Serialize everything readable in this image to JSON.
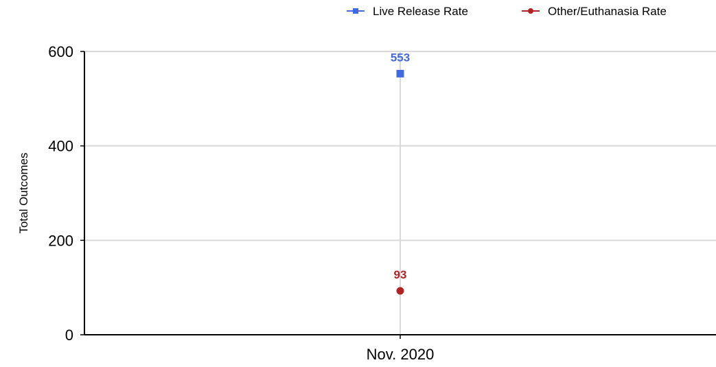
{
  "chart_data": {
    "type": "line",
    "categories": [
      "Nov. 2020"
    ],
    "series": [
      {
        "name": "Live Release Rate",
        "values": [
          553
        ],
        "color": "#4169e1",
        "marker": "square"
      },
      {
        "name": "Other/Euthanasia Rate",
        "values": [
          93
        ],
        "color": "#b22222",
        "marker": "circle"
      }
    ],
    "ylabel": "Total Outcomes",
    "xlabel": "",
    "ylim": [
      0,
      600
    ],
    "yticks": [
      "0",
      "200",
      "400",
      "600"
    ],
    "data_labels": [
      "553",
      "93"
    ],
    "grid": true,
    "legend_position": "top-right"
  }
}
